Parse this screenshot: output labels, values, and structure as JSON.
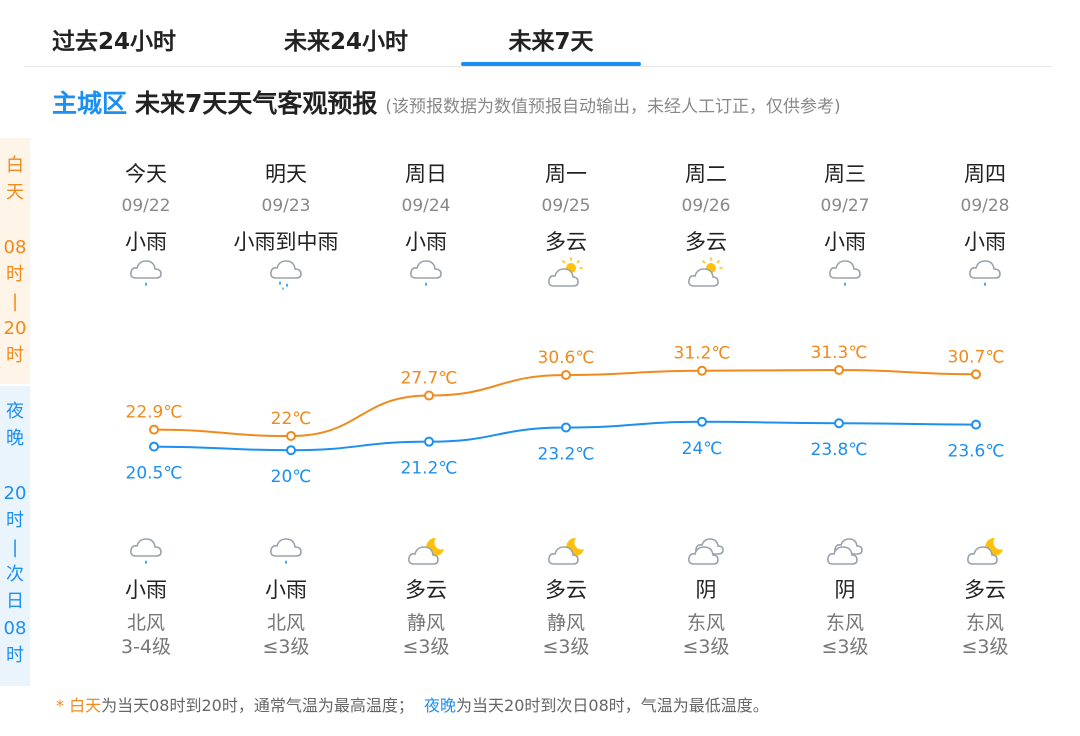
{
  "tabs": [
    {
      "label": "过去24小时"
    },
    {
      "label": "未来24小时"
    },
    {
      "label": "未来7天",
      "active": true
    }
  ],
  "heading": {
    "district": "主城区",
    "title": "未来7天天气客观预报",
    "note": "(该预报数据为数值预报自动输出，未经人工订正，仅供参考)"
  },
  "side": {
    "day_label": "白\n天",
    "day_time": "08\n时\n|\n20\n时",
    "night_label": "夜\n晚",
    "night_time": "20\n时\n|\n次\n日\n08\n时"
  },
  "colors": {
    "day": "#f08a1c",
    "night": "#1d8ff0",
    "accent": "#1d8ff0"
  },
  "days": [
    {
      "name": "今天",
      "date": "09/22",
      "day_weather": "小雨",
      "day_icon": "cloud-light-rain-icon",
      "high": "22.9℃",
      "night_icon": "cloud-light-rain-icon",
      "night_weather": "小雨",
      "low": "20.5℃",
      "wind_dir": "北风",
      "wind_level": "3-4级"
    },
    {
      "name": "明天",
      "date": "09/23",
      "day_weather": "小雨到中雨",
      "day_icon": "cloud-moderate-rain-icon",
      "high": "22℃",
      "night_icon": "cloud-light-rain-icon",
      "night_weather": "小雨",
      "low": "20℃",
      "wind_dir": "北风",
      "wind_level": "≤3级"
    },
    {
      "name": "周日",
      "date": "09/24",
      "day_weather": "小雨",
      "day_icon": "cloud-light-rain-icon",
      "high": "27.7℃",
      "night_icon": "moon-cloud-icon",
      "night_weather": "多云",
      "low": "21.2℃",
      "wind_dir": "静风",
      "wind_level": "≤3级"
    },
    {
      "name": "周一",
      "date": "09/25",
      "day_weather": "多云",
      "day_icon": "sun-cloud-icon",
      "high": "30.6℃",
      "night_icon": "moon-cloud-icon",
      "night_weather": "多云",
      "low": "23.2℃",
      "wind_dir": "静风",
      "wind_level": "≤3级"
    },
    {
      "name": "周二",
      "date": "09/26",
      "day_weather": "多云",
      "day_icon": "sun-cloud-icon",
      "high": "31.2℃",
      "night_icon": "overcast-cloud-icon",
      "night_weather": "阴",
      "low": "24℃",
      "wind_dir": "东风",
      "wind_level": "≤3级"
    },
    {
      "name": "周三",
      "date": "09/27",
      "day_weather": "小雨",
      "day_icon": "cloud-light-rain-icon",
      "high": "31.3℃",
      "night_icon": "overcast-cloud-icon",
      "night_weather": "阴",
      "low": "23.8℃",
      "wind_dir": "东风",
      "wind_level": "≤3级"
    },
    {
      "name": "周四",
      "date": "09/28",
      "day_weather": "小雨",
      "day_icon": "cloud-light-rain-icon",
      "high": "30.7℃",
      "night_icon": "moon-cloud-icon",
      "night_weather": "多云",
      "low": "23.6℃",
      "wind_dir": "东风",
      "wind_level": "≤3级"
    }
  ],
  "chart_data": {
    "type": "line",
    "categories": [
      "09/22",
      "09/23",
      "09/24",
      "09/25",
      "09/26",
      "09/27",
      "09/28"
    ],
    "series": [
      {
        "key": "high",
        "values": [
          22.9,
          22,
          27.7,
          30.6,
          31.2,
          31.3,
          30.7
        ],
        "color": "#f08a1c"
      },
      {
        "key": "low",
        "values": [
          20.5,
          20,
          21.2,
          23.2,
          24,
          23.8,
          23.6
        ],
        "color": "#1d8ff0"
      }
    ],
    "ylim": [
      18,
      33
    ],
    "grid": false
  },
  "footer": {
    "star": "* ",
    "day_term": "白天",
    "day_text": "为当天08时到20时，通常气温为最高温度；",
    "night_term": "夜晚",
    "night_text": "为当天20时到次日08时，气温为最低温度。"
  }
}
